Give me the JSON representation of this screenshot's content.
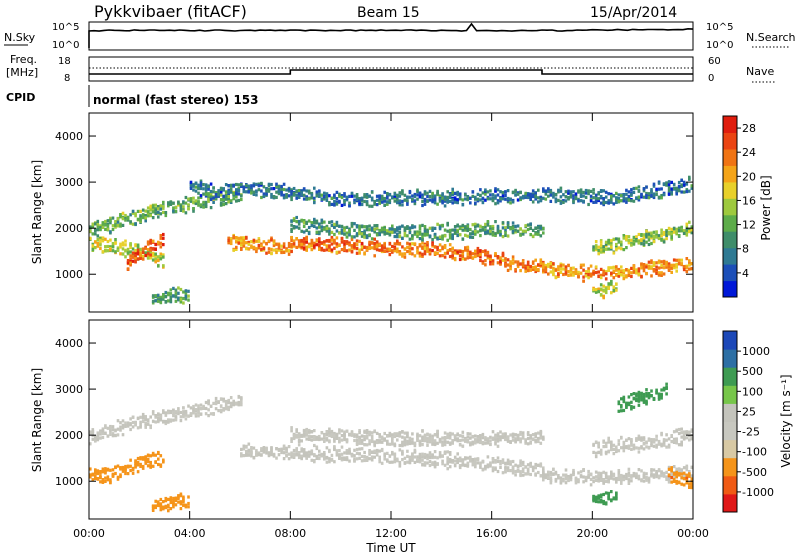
{
  "header": {
    "station": "Pykkvibaer (fitACF)",
    "beam": "Beam 15",
    "date": "15/Apr/2014"
  },
  "status_panels": {
    "noise": {
      "left_label": "N.Sky",
      "left_ticks": [
        "10^5",
        "10^0"
      ],
      "right_label": "N.Search",
      "right_ticks": [
        "10^5",
        "10^0"
      ]
    },
    "freq": {
      "left_label_1": "Freq.",
      "left_label_2": "[MHz]",
      "left_ticks": [
        "18",
        "8"
      ],
      "right_label": "Nave",
      "right_ticks": [
        "60",
        "0"
      ]
    },
    "cpid": {
      "label": "CPID",
      "text": "normal (fast stereo) 153"
    }
  },
  "colors": {
    "power": [
      "#0018d8",
      "#1c4fb8",
      "#2f7a93",
      "#3f8d6a",
      "#5dac4a",
      "#9ec93e",
      "#e8d02a",
      "#f4a418",
      "#f07414",
      "#ea4412",
      "#e01d0e"
    ],
    "velocity": [
      "#e01818",
      "#f05a14",
      "#f5941a",
      "#d8c9a4",
      "#c8c8c0",
      "#c4c4bc",
      "#77c64a",
      "#3e9b52",
      "#2d6fa4",
      "#1c48b8"
    ]
  },
  "chart_data": [
    {
      "type": "heatmap",
      "name": "Power",
      "xlabel": "",
      "ylabel": "Slant Range [km]",
      "yticks": [
        "1000",
        "2000",
        "3000",
        "4000"
      ],
      "ylim": [
        180,
        4500
      ],
      "xlim_hours": [
        0,
        24
      ],
      "colorbar": {
        "label": "Power [dB]",
        "ticks": [
          "4",
          "8",
          "12",
          "16",
          "20",
          "24",
          "28"
        ],
        "range": [
          0,
          30
        ]
      },
      "echo_bands": [
        {
          "t": [
            0.0,
            0.5,
            1.0,
            2.0,
            3.0,
            4.0,
            5.0,
            6.0
          ],
          "range": [
            2000,
            2050,
            2150,
            2300,
            2450,
            2550,
            2650,
            2750
          ],
          "power": 12
        },
        {
          "t": [
            0.0,
            1.0,
            2.0,
            3.0
          ],
          "range": [
            1700,
            1650,
            1500,
            1300
          ],
          "power": 16
        },
        {
          "t": [
            1.5,
            2.0,
            2.5,
            3.0
          ],
          "range": [
            1300,
            1450,
            1650,
            1800
          ],
          "power": 26
        },
        {
          "t": [
            5.5,
            6.0,
            7.0,
            8.0
          ],
          "range": [
            1750,
            1700,
            1650,
            1600
          ],
          "power": 22
        },
        {
          "t": [
            8.0,
            10.0,
            12.0,
            14.0,
            15.0,
            16.0,
            17.0,
            18.0
          ],
          "range": [
            1700,
            1650,
            1600,
            1550,
            1500,
            1350,
            1250,
            1200
          ],
          "power": 24
        },
        {
          "t": [
            8.0,
            10.0,
            12.0,
            14.0,
            16.0,
            18.0
          ],
          "range": [
            2100,
            2000,
            1950,
            1950,
            2000,
            2000
          ],
          "power": 10
        },
        {
          "t": [
            18.0,
            19.0,
            20.0,
            21.0,
            22.0,
            23.0,
            24.0
          ],
          "range": [
            1150,
            1100,
            1050,
            1100,
            1150,
            1200,
            1250
          ],
          "power": 22
        },
        {
          "t": [
            20.0,
            21.0,
            22.0,
            23.0,
            24.0
          ],
          "range": [
            1600,
            1700,
            1800,
            1900,
            2050
          ],
          "power": 14
        },
        {
          "t": [
            4.0,
            5.0,
            6.0,
            8.0,
            10.0,
            14.0,
            18.0,
            21.0,
            23.0,
            24.0
          ],
          "range": [
            2950,
            2800,
            2900,
            2800,
            2650,
            2700,
            2750,
            2700,
            2900,
            3000
          ],
          "power": 6
        },
        {
          "t": [
            2.5,
            3.0,
            3.5,
            4.0
          ],
          "range": [
            450,
            550,
            600,
            550
          ],
          "power": 10
        },
        {
          "t": [
            20.0,
            20.5,
            21.0
          ],
          "range": [
            650,
            700,
            800
          ],
          "power": 16
        }
      ]
    },
    {
      "type": "heatmap",
      "name": "Velocity",
      "xlabel": "Time UT",
      "ylabel": "Slant Range [km]",
      "yticks": [
        "1000",
        "2000",
        "3000",
        "4000"
      ],
      "ylim": [
        180,
        4500
      ],
      "xlim_hours": [
        0,
        24
      ],
      "xticks": [
        "00:00",
        "04:00",
        "08:00",
        "12:00",
        "16:00",
        "20:00",
        "00:00"
      ],
      "colorbar": {
        "label": "Velocity [m s⁻¹]",
        "ticks": [
          "-1000",
          "-500",
          "-100",
          "-25",
          "25",
          "100",
          "500",
          "1000"
        ]
      },
      "echo_bands": [
        {
          "t": [
            0.0,
            1.0,
            2.0,
            3.0,
            4.0,
            5.0,
            6.0
          ],
          "range": [
            2000,
            2150,
            2300,
            2450,
            2550,
            2650,
            2750
          ],
          "velocity": 0
        },
        {
          "t": [
            6.0,
            8.0,
            10.0,
            12.0,
            14.0,
            16.0,
            18.0
          ],
          "range": [
            1700,
            1650,
            1600,
            1550,
            1500,
            1400,
            1250
          ],
          "velocity": 0
        },
        {
          "t": [
            8.0,
            12.0,
            16.0,
            18.0
          ],
          "range": [
            2050,
            1950,
            1950,
            2000
          ],
          "velocity": 0
        },
        {
          "t": [
            18.0,
            20.0,
            22.0,
            24.0
          ],
          "range": [
            1150,
            1100,
            1150,
            1250
          ],
          "velocity": 0
        },
        {
          "t": [
            20.0,
            22.0,
            24.0
          ],
          "range": [
            1750,
            1850,
            2050
          ],
          "velocity": 0
        },
        {
          "t": [
            0.0,
            0.5,
            1.0,
            1.5,
            2.0,
            2.5,
            3.0
          ],
          "range": [
            1200,
            1150,
            1200,
            1300,
            1450,
            1500,
            1550
          ],
          "velocity": -300
        },
        {
          "t": [
            2.5,
            3.0,
            3.5,
            4.0
          ],
          "range": [
            450,
            550,
            600,
            550
          ],
          "velocity": -300
        },
        {
          "t": [
            21.0,
            22.0,
            23.0
          ],
          "range": [
            2700,
            2850,
            3000
          ],
          "velocity": 150
        },
        {
          "t": [
            20.0,
            20.5,
            21.0
          ],
          "range": [
            650,
            700,
            800
          ],
          "velocity": 300
        },
        {
          "t": [
            23.0,
            23.5,
            24.0
          ],
          "range": [
            1150,
            1100,
            1000
          ],
          "velocity": -400
        }
      ]
    }
  ]
}
